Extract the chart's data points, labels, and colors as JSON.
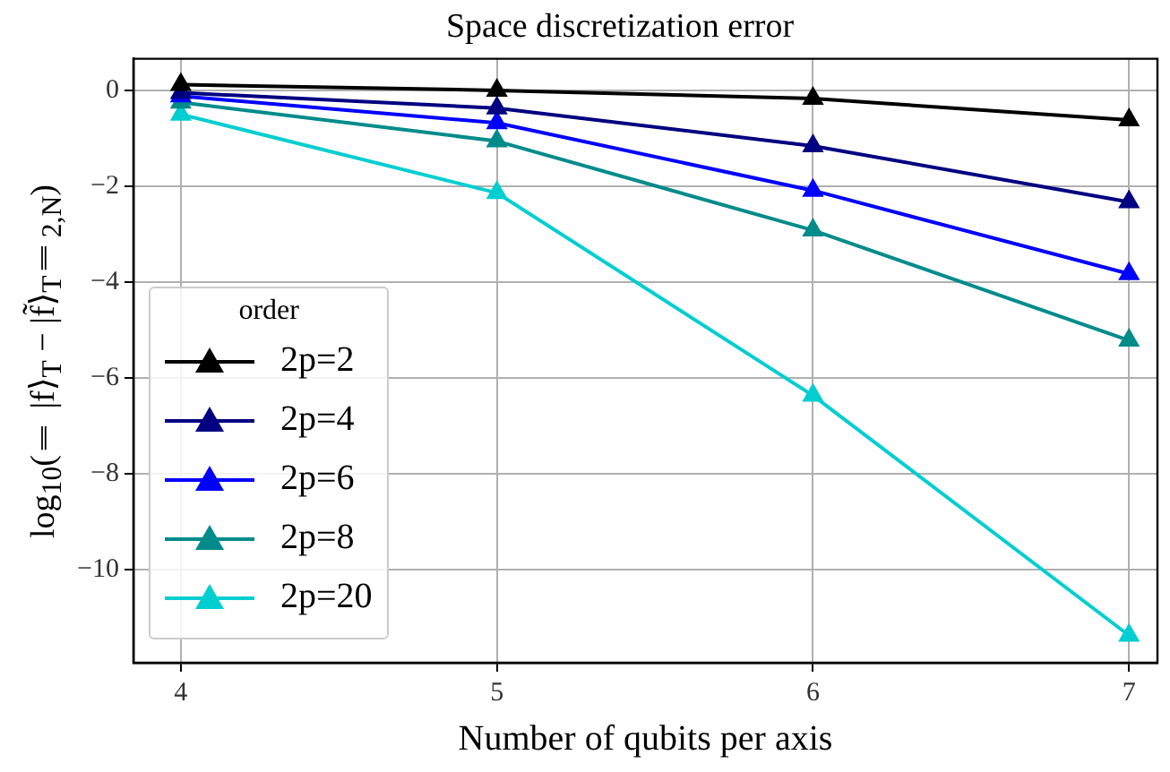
{
  "chart_data": {
    "type": "line",
    "title": "Space discretization error",
    "xlabel": "Number of qubits per axis",
    "ylabel": "log$_{10}$(‖ |f⟩$_{T}$ − |f̃⟩$_{T}$‖$_{2,N}$)",
    "legend_title": "order",
    "legend": "bottom left",
    "grid": true,
    "marker": "triangle",
    "line_style": "solid",
    "x": [
      4,
      5,
      6,
      7
    ],
    "xlim": [
      3.85,
      7.09
    ],
    "xticks": [
      4,
      5,
      6,
      7
    ],
    "ylim": [
      -11.95,
      0.66
    ],
    "yticks": [
      {
        "value": 0,
        "label": "0"
      },
      {
        "value": -2,
        "label": "−2"
      },
      {
        "value": -4,
        "label": "−4"
      },
      {
        "value": -6,
        "label": "−6"
      },
      {
        "value": -8,
        "label": "−8"
      },
      {
        "value": -10,
        "label": "−10"
      }
    ],
    "series": [
      {
        "name": "2p=2",
        "color": "#000000",
        "values": [
          0.12,
          0.0,
          -0.17,
          -0.62
        ]
      },
      {
        "name": "2p=4",
        "color": "#000080",
        "values": [
          -0.05,
          -0.37,
          -1.16,
          -2.33
        ]
      },
      {
        "name": "2p=6",
        "color": "#0000ff",
        "values": [
          -0.12,
          -0.68,
          -2.09,
          -3.83
        ]
      },
      {
        "name": "2p=8",
        "color": "#008b8b",
        "values": [
          -0.25,
          -1.06,
          -2.92,
          -5.22
        ]
      },
      {
        "name": "2p=20",
        "color": "#00ced1",
        "values": [
          -0.5,
          -2.14,
          -6.37,
          -11.38
        ]
      }
    ]
  }
}
